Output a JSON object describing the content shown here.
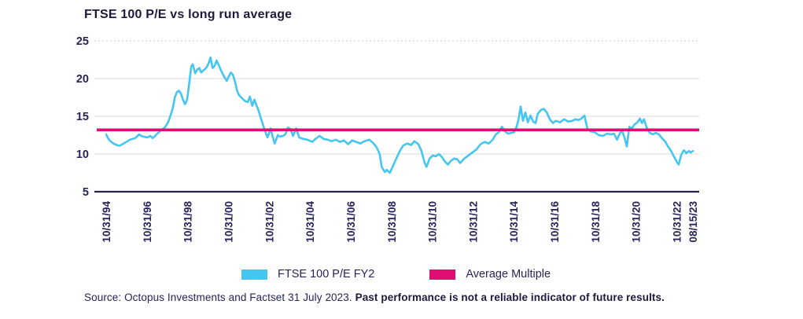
{
  "title": "FTSE 100 P/E vs long run average",
  "legend": {
    "items": [
      {
        "label": "FTSE 100 P/E FY2",
        "color": "#45c6f0"
      },
      {
        "label": "Average Multiple",
        "color": "#e20d72"
      }
    ]
  },
  "footnote": {
    "source": "Source: Octopus Investments and Factset 31 July 2023. ",
    "disclaimer": "Past performance is not a reliable indicator of future results."
  },
  "colors": {
    "text_navy": "#28235a",
    "title_navy": "#1e1a3e",
    "axis_line": "#2a234f",
    "gridline": "#d9d9d9",
    "gridline_top_dotted": "#c9c9c9",
    "series_blue": "#45c6f0",
    "average_pink": "#e20d72"
  },
  "chart_data": {
    "type": "line",
    "title": "FTSE 100 P/E vs long run average",
    "xlabel": "",
    "ylabel": "",
    "ylim": [
      5,
      25
    ],
    "yticks": [
      5,
      10,
      15,
      20,
      25
    ],
    "grid": "horizontal",
    "legend_position": "bottom",
    "xticks": [
      {
        "label": "10/31/94",
        "t": 1994.83
      },
      {
        "label": "10/31/96",
        "t": 1996.83
      },
      {
        "label": "10/31/98",
        "t": 1998.83
      },
      {
        "label": "10/31/00",
        "t": 2000.83
      },
      {
        "label": "10/31/02",
        "t": 2002.83
      },
      {
        "label": "10/31/04",
        "t": 2004.83
      },
      {
        "label": "10/31/06",
        "t": 2006.83
      },
      {
        "label": "10/31/08",
        "t": 2008.83
      },
      {
        "label": "10/31/10",
        "t": 2010.83
      },
      {
        "label": "10/31/12",
        "t": 2012.83
      },
      {
        "label": "10/31/14",
        "t": 2014.83
      },
      {
        "label": "10/31/16",
        "t": 2016.83
      },
      {
        "label": "10/31/18",
        "t": 2018.83
      },
      {
        "label": "10/31/20",
        "t": 2020.83
      },
      {
        "label": "10/31/22",
        "t": 2022.83
      },
      {
        "label": "08/15/23",
        "t": 2023.62
      }
    ],
    "average_multiple": {
      "name": "Average Multiple",
      "value": 13.2,
      "color": "#e20d72"
    },
    "series": [
      {
        "name": "FTSE 100 P/E FY2",
        "color": "#45c6f0",
        "points": [
          [
            1994.83,
            12.6
          ],
          [
            1994.92,
            12.1
          ],
          [
            1995.0,
            11.8
          ],
          [
            1995.13,
            11.5
          ],
          [
            1995.25,
            11.3
          ],
          [
            1995.38,
            11.15
          ],
          [
            1995.5,
            11.1
          ],
          [
            1995.63,
            11.3
          ],
          [
            1995.75,
            11.5
          ],
          [
            1995.88,
            11.7
          ],
          [
            1996.0,
            11.9
          ],
          [
            1996.13,
            12.0
          ],
          [
            1996.25,
            12.1
          ],
          [
            1996.45,
            12.6
          ],
          [
            1996.55,
            12.4
          ],
          [
            1996.65,
            12.3
          ],
          [
            1996.85,
            12.2
          ],
          [
            1997.0,
            12.4
          ],
          [
            1997.1,
            12.1
          ],
          [
            1997.2,
            12.3
          ],
          [
            1997.3,
            12.6
          ],
          [
            1997.42,
            12.9
          ],
          [
            1997.5,
            13.1
          ],
          [
            1997.6,
            13.3
          ],
          [
            1997.7,
            13.5
          ],
          [
            1997.8,
            13.9
          ],
          [
            1997.9,
            14.4
          ],
          [
            1998.0,
            15.2
          ],
          [
            1998.1,
            16.1
          ],
          [
            1998.2,
            17.5
          ],
          [
            1998.3,
            18.2
          ],
          [
            1998.4,
            18.4
          ],
          [
            1998.5,
            18.0
          ],
          [
            1998.6,
            17.2
          ],
          [
            1998.7,
            16.6
          ],
          [
            1998.8,
            17.2
          ],
          [
            1998.9,
            19.3
          ],
          [
            1999.0,
            21.6
          ],
          [
            1999.08,
            21.9
          ],
          [
            1999.2,
            20.7
          ],
          [
            1999.3,
            21.2
          ],
          [
            1999.4,
            21.4
          ],
          [
            1999.5,
            20.8
          ],
          [
            1999.6,
            21.1
          ],
          [
            1999.7,
            21.3
          ],
          [
            1999.8,
            21.7
          ],
          [
            1999.88,
            22.2
          ],
          [
            1999.95,
            22.8
          ],
          [
            2000.05,
            21.4
          ],
          [
            2000.15,
            21.7
          ],
          [
            2000.25,
            22.4
          ],
          [
            2000.35,
            21.8
          ],
          [
            2000.45,
            21.2
          ],
          [
            2000.55,
            20.6
          ],
          [
            2000.65,
            20.1
          ],
          [
            2000.75,
            19.7
          ],
          [
            2000.85,
            20.3
          ],
          [
            2000.95,
            20.8
          ],
          [
            2001.05,
            20.5
          ],
          [
            2001.15,
            19.6
          ],
          [
            2001.25,
            18.4
          ],
          [
            2001.35,
            17.8
          ],
          [
            2001.5,
            17.4
          ],
          [
            2001.65,
            17.0
          ],
          [
            2001.78,
            16.9
          ],
          [
            2001.88,
            17.6
          ],
          [
            2002.0,
            16.4
          ],
          [
            2002.1,
            17.2
          ],
          [
            2002.2,
            16.5
          ],
          [
            2002.3,
            15.8
          ],
          [
            2002.4,
            14.9
          ],
          [
            2002.5,
            14.1
          ],
          [
            2002.6,
            13.2
          ],
          [
            2002.75,
            12.2
          ],
          [
            2002.9,
            13.4
          ],
          [
            2003.0,
            12.3
          ],
          [
            2003.1,
            11.4
          ],
          [
            2003.25,
            12.5
          ],
          [
            2003.35,
            12.3
          ],
          [
            2003.5,
            12.4
          ],
          [
            2003.62,
            12.6
          ],
          [
            2003.75,
            13.5
          ],
          [
            2003.88,
            13.3
          ],
          [
            2004.0,
            12.4
          ],
          [
            2004.15,
            13.4
          ],
          [
            2004.3,
            12.2
          ],
          [
            2004.5,
            12.0
          ],
          [
            2004.7,
            11.9
          ],
          [
            2004.95,
            11.6
          ],
          [
            2005.1,
            12.0
          ],
          [
            2005.3,
            12.4
          ],
          [
            2005.5,
            12.0
          ],
          [
            2005.7,
            11.9
          ],
          [
            2005.9,
            11.7
          ],
          [
            2006.1,
            11.9
          ],
          [
            2006.3,
            11.6
          ],
          [
            2006.5,
            11.8
          ],
          [
            2006.7,
            11.3
          ],
          [
            2006.9,
            11.8
          ],
          [
            2007.1,
            11.6
          ],
          [
            2007.3,
            11.4
          ],
          [
            2007.5,
            11.7
          ],
          [
            2007.75,
            11.9
          ],
          [
            2007.95,
            11.4
          ],
          [
            2008.1,
            10.9
          ],
          [
            2008.25,
            10.0
          ],
          [
            2008.35,
            8.3
          ],
          [
            2008.5,
            7.6
          ],
          [
            2008.6,
            7.9
          ],
          [
            2008.75,
            7.5
          ],
          [
            2008.9,
            8.4
          ],
          [
            2009.05,
            9.3
          ],
          [
            2009.2,
            10.2
          ],
          [
            2009.4,
            11.1
          ],
          [
            2009.6,
            11.4
          ],
          [
            2009.8,
            11.2
          ],
          [
            2009.95,
            11.7
          ],
          [
            2010.15,
            11.3
          ],
          [
            2010.3,
            10.4
          ],
          [
            2010.45,
            8.9
          ],
          [
            2010.55,
            8.3
          ],
          [
            2010.7,
            9.4
          ],
          [
            2010.85,
            9.8
          ],
          [
            2011.0,
            9.7
          ],
          [
            2011.15,
            10.0
          ],
          [
            2011.3,
            9.6
          ],
          [
            2011.45,
            9.0
          ],
          [
            2011.6,
            8.6
          ],
          [
            2011.75,
            9.1
          ],
          [
            2011.9,
            9.4
          ],
          [
            2012.05,
            9.3
          ],
          [
            2012.2,
            8.8
          ],
          [
            2012.4,
            9.4
          ],
          [
            2012.6,
            9.8
          ],
          [
            2012.8,
            10.2
          ],
          [
            2013.0,
            10.6
          ],
          [
            2013.2,
            11.3
          ],
          [
            2013.4,
            11.6
          ],
          [
            2013.6,
            11.4
          ],
          [
            2013.8,
            11.9
          ],
          [
            2013.95,
            12.6
          ],
          [
            2014.1,
            12.9
          ],
          [
            2014.25,
            13.6
          ],
          [
            2014.4,
            13.0
          ],
          [
            2014.55,
            12.7
          ],
          [
            2014.7,
            12.8
          ],
          [
            2014.85,
            12.9
          ],
          [
            2014.97,
            13.6
          ],
          [
            2015.08,
            14.8
          ],
          [
            2015.17,
            16.3
          ],
          [
            2015.28,
            14.4
          ],
          [
            2015.4,
            15.5
          ],
          [
            2015.52,
            14.2
          ],
          [
            2015.65,
            15.1
          ],
          [
            2015.78,
            14.3
          ],
          [
            2015.9,
            14.1
          ],
          [
            2016.0,
            15.3
          ],
          [
            2016.15,
            15.8
          ],
          [
            2016.3,
            16.0
          ],
          [
            2016.45,
            15.5
          ],
          [
            2016.6,
            14.6
          ],
          [
            2016.75,
            14.1
          ],
          [
            2016.9,
            14.4
          ],
          [
            2017.1,
            14.2
          ],
          [
            2017.3,
            14.6
          ],
          [
            2017.5,
            14.3
          ],
          [
            2017.7,
            14.4
          ],
          [
            2017.85,
            14.6
          ],
          [
            2018.0,
            14.5
          ],
          [
            2018.15,
            14.7
          ],
          [
            2018.3,
            15.1
          ],
          [
            2018.45,
            13.3
          ],
          [
            2018.6,
            13.0
          ],
          [
            2018.8,
            12.9
          ],
          [
            2019.0,
            12.5
          ],
          [
            2019.2,
            12.4
          ],
          [
            2019.4,
            12.7
          ],
          [
            2019.6,
            12.6
          ],
          [
            2019.75,
            12.7
          ],
          [
            2019.9,
            11.9
          ],
          [
            2020.05,
            12.8
          ],
          [
            2020.15,
            13.1
          ],
          [
            2020.28,
            12.0
          ],
          [
            2020.38,
            11.0
          ],
          [
            2020.5,
            13.6
          ],
          [
            2020.62,
            13.4
          ],
          [
            2020.75,
            13.9
          ],
          [
            2020.9,
            14.2
          ],
          [
            2021.02,
            14.7
          ],
          [
            2021.12,
            14.1
          ],
          [
            2021.22,
            14.6
          ],
          [
            2021.35,
            13.5
          ],
          [
            2021.5,
            12.8
          ],
          [
            2021.65,
            12.6
          ],
          [
            2021.8,
            12.8
          ],
          [
            2021.95,
            12.6
          ],
          [
            2022.1,
            12.1
          ],
          [
            2022.25,
            11.7
          ],
          [
            2022.4,
            11.0
          ],
          [
            2022.55,
            10.4
          ],
          [
            2022.7,
            9.6
          ],
          [
            2022.82,
            9.0
          ],
          [
            2022.92,
            8.6
          ],
          [
            2023.05,
            9.9
          ],
          [
            2023.18,
            10.5
          ],
          [
            2023.3,
            10.1
          ],
          [
            2023.42,
            10.4
          ],
          [
            2023.52,
            10.2
          ],
          [
            2023.62,
            10.4
          ]
        ]
      }
    ]
  }
}
